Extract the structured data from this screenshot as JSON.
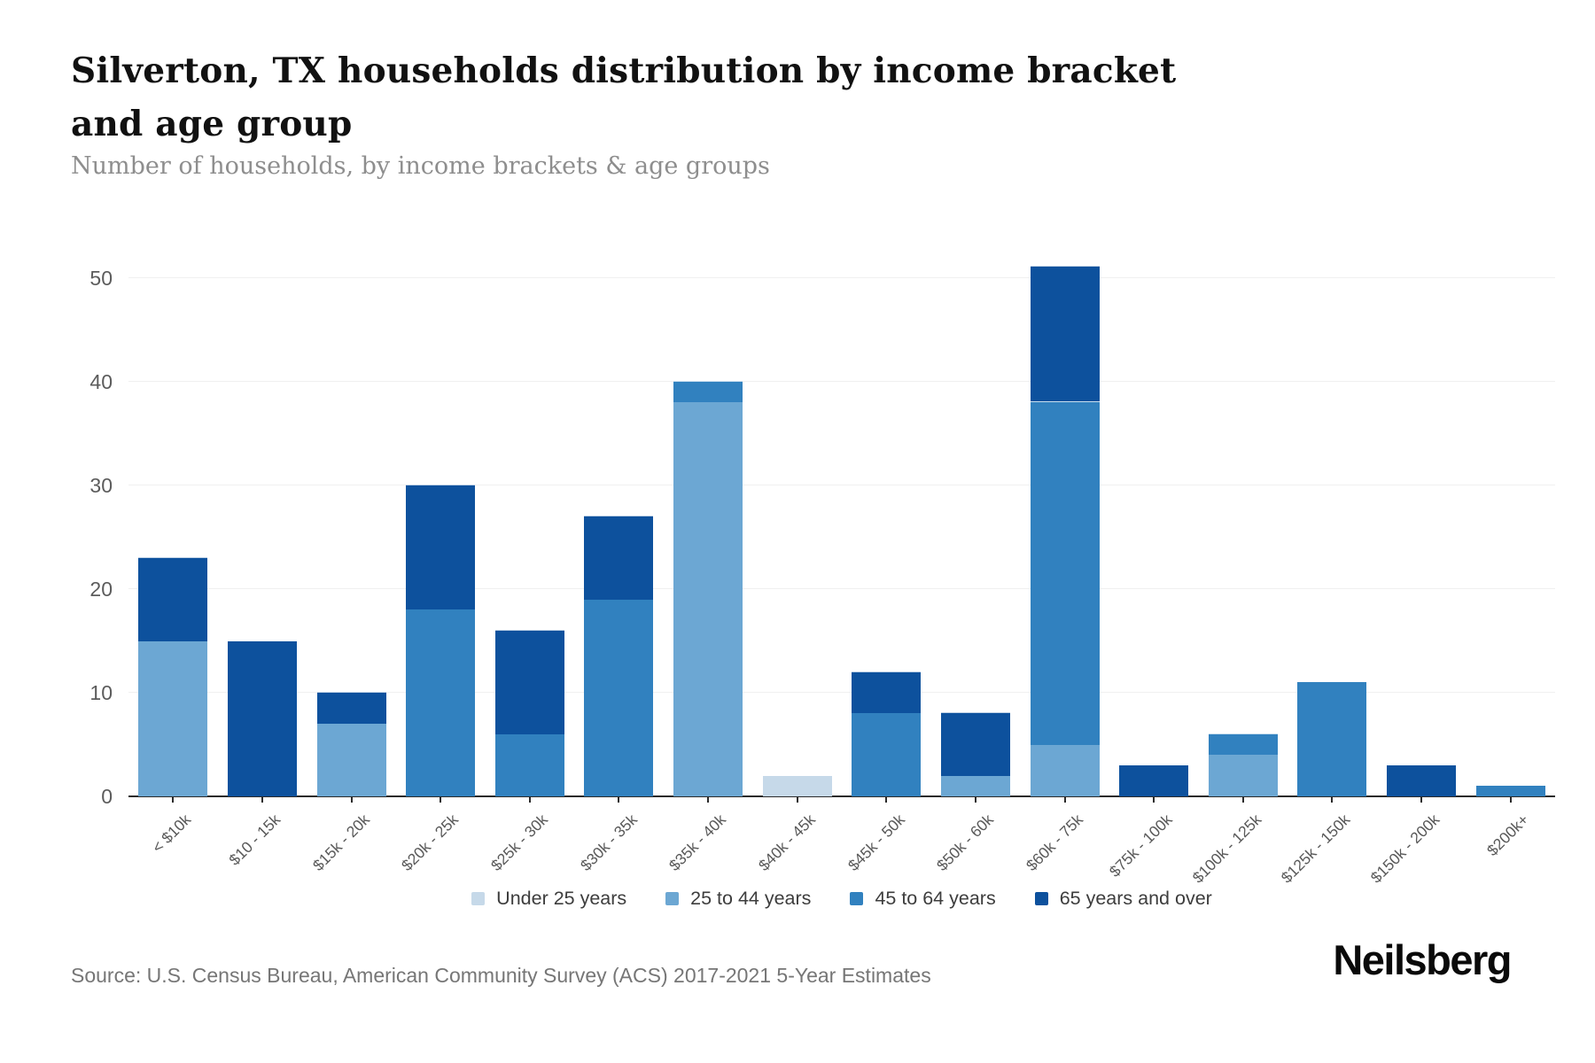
{
  "header": {
    "title": "Silverton, TX households distribution by income bracket and age group",
    "subtitle": "Number of households, by income brackets & age groups"
  },
  "footer": {
    "source_line": "Source: U.S. Census Bureau, American Community Survey (ACS) 2017-2021 5-Year Estimates",
    "brand_logo_text": "Neilsberg"
  },
  "chart_data": {
    "type": "bar",
    "stacked": true,
    "title": "Silverton, TX households distribution by income bracket and age group",
    "subtitle": "Number of households, by income brackets & age groups",
    "xlabel": "",
    "ylabel": "",
    "ylim": [
      0,
      52
    ],
    "yticks": [
      0,
      10,
      20,
      30,
      40,
      50
    ],
    "grid": true,
    "legend_position": "bottom",
    "categories": [
      "< $10k",
      "$10 - 15k",
      "$15k - 20k",
      "$20k - 25k",
      "$25k - 30k",
      "$30k - 35k",
      "$35k - 40k",
      "$40k - 45k",
      "$45k - 50k",
      "$50k - 60k",
      "$60k - 75k",
      "$75k - 100k",
      "$100k - 125k",
      "$125k - 150k",
      "$150k - 200k",
      "$200k+"
    ],
    "series": [
      {
        "name": "Under 25 years",
        "color": "#c6d9e9",
        "values": [
          0,
          0,
          0,
          0,
          0,
          0,
          0,
          2,
          0,
          0,
          0,
          0,
          0,
          0,
          0,
          0
        ]
      },
      {
        "name": "25 to 44 years",
        "color": "#6ca7d3",
        "values": [
          15,
          0,
          7,
          0,
          0,
          0,
          38,
          0,
          0,
          2,
          5,
          0,
          4,
          0,
          0,
          0
        ]
      },
      {
        "name": "45 to 64 years",
        "color": "#3181bf",
        "values": [
          0,
          0,
          0,
          18,
          6,
          19,
          2,
          0,
          8,
          0,
          33,
          0,
          2,
          11,
          0,
          1
        ]
      },
      {
        "name": "65 years and over",
        "color": "#0d519d",
        "values": [
          8,
          15,
          3,
          12,
          10,
          8,
          0,
          0,
          4,
          6,
          13,
          3,
          0,
          0,
          3,
          0
        ]
      }
    ],
    "totals": [
      23,
      15,
      10,
      30,
      16,
      27,
      40,
      2,
      12,
      8,
      51,
      3,
      6,
      11,
      3,
      1
    ]
  }
}
